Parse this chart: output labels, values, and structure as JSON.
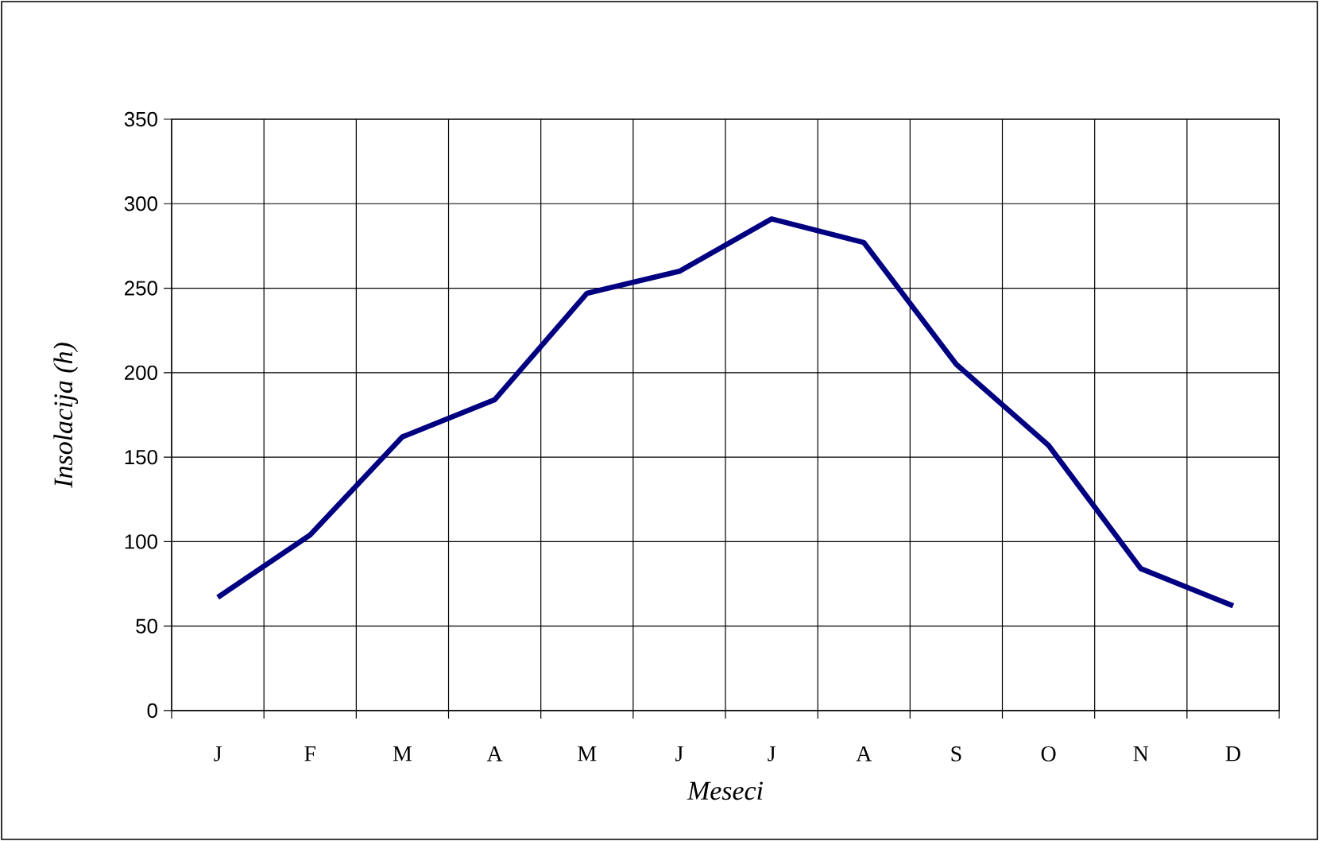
{
  "chart_data": {
    "type": "line",
    "xlabel": "Meseci",
    "ylabel": "Insolacija (h)",
    "categories": [
      "J",
      "F",
      "M",
      "A",
      "M",
      "J",
      "J",
      "A",
      "S",
      "O",
      "N",
      "D"
    ],
    "series": [
      {
        "color": "#000080",
        "values": [
          67,
          104,
          162,
          184,
          247,
          260,
          291,
          277,
          205,
          157,
          84,
          62
        ]
      }
    ],
    "ylim": [
      0,
      350
    ],
    "yticks": [
      0,
      50,
      100,
      150,
      200,
      250,
      300,
      350
    ],
    "grid": true,
    "marker": "none",
    "line_style": "solid"
  }
}
